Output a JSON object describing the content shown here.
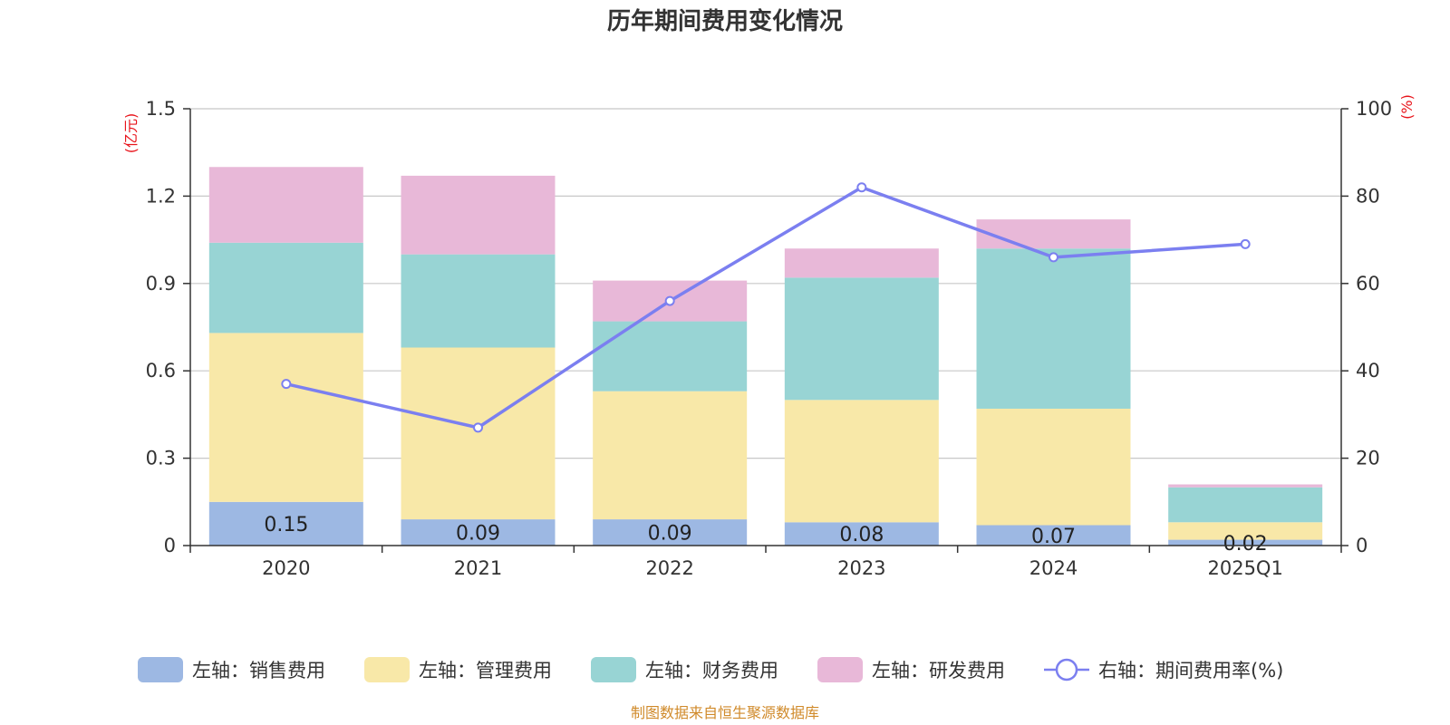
{
  "chart_data": {
    "type": "bar",
    "title": "历年期间费用变化情况",
    "categories": [
      "2020",
      "2021",
      "2022",
      "2023",
      "2024",
      "2025Q1"
    ],
    "series": [
      {
        "name": "左轴：销售费用",
        "values": [
          0.15,
          0.09,
          0.09,
          0.08,
          0.07,
          0.02
        ],
        "color": "#9db8e3"
      },
      {
        "name": "左轴：管理费用",
        "values": [
          0.58,
          0.59,
          0.44,
          0.42,
          0.4,
          0.06
        ],
        "color": "#f8e8a8"
      },
      {
        "name": "左轴：财务费用",
        "values": [
          0.31,
          0.32,
          0.24,
          0.42,
          0.55,
          0.12
        ],
        "color": "#98d4d4"
      },
      {
        "name": "左轴：研发费用",
        "values": [
          0.26,
          0.27,
          0.14,
          0.1,
          0.1,
          0.01
        ],
        "color": "#e8b8d8"
      }
    ],
    "line": {
      "name": "右轴：期间费用率(%)",
      "values": [
        37.0,
        27.0,
        56.0,
        82.0,
        66.0,
        69.0
      ],
      "color": "#7b7ff0"
    },
    "data_labels": [
      "0.15",
      "0.09",
      "0.09",
      "0.08",
      "0.07",
      "0.02"
    ],
    "yleft": {
      "unit": "(亿元)",
      "ticks": [
        "0",
        "0.3",
        "0.6",
        "0.9",
        "1.2",
        "1.5"
      ],
      "lim": [
        0,
        1.5
      ]
    },
    "yright": {
      "unit": "(%)",
      "ticks": [
        "0",
        "20",
        "40",
        "60",
        "80",
        "100"
      ],
      "lim": [
        0,
        100
      ]
    },
    "grid": true,
    "legend_position": "bottom",
    "source": "制图数据来自恒生聚源数据库"
  }
}
